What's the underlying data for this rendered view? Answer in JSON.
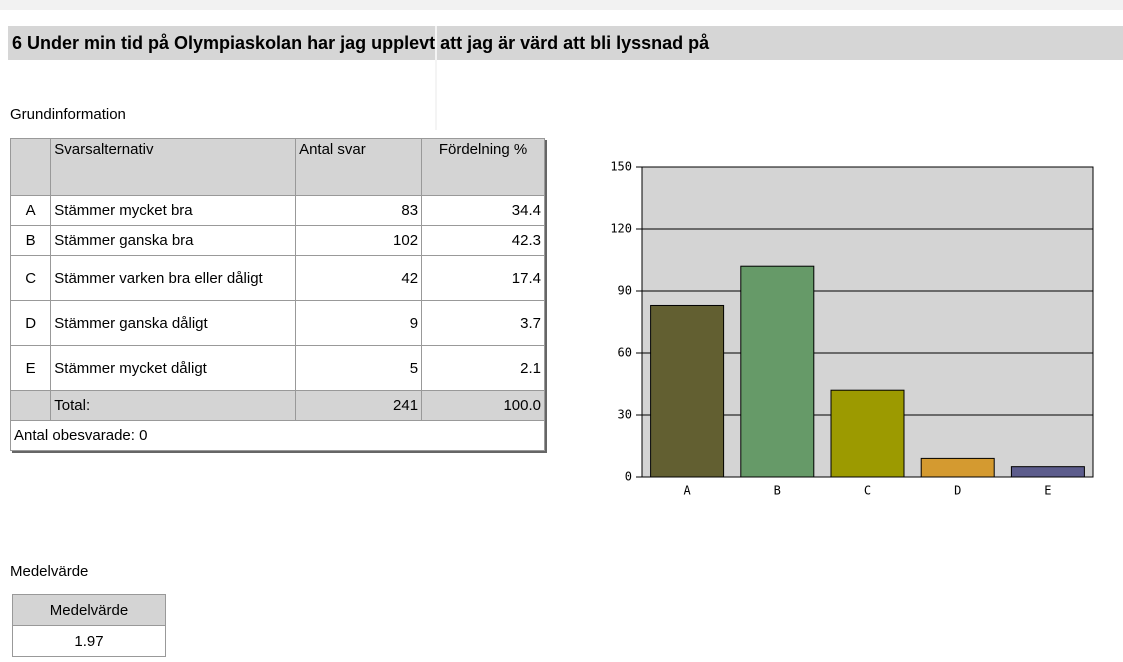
{
  "title": "6 Under min tid på Olympiaskolan har jag upplevt att jag är värd att bli lyssnad på",
  "section": "Grundinformation",
  "table": {
    "headers": [
      "Svarsalternativ",
      "Antal svar",
      "Fördelning %"
    ],
    "rows": [
      [
        "A",
        "Stämmer mycket bra",
        83,
        34.4
      ],
      [
        "B",
        "Stämmer ganska bra",
        102,
        42.3
      ],
      [
        "C",
        "Stämmer varken bra eller dåligt",
        42,
        17.4
      ],
      [
        "D",
        "Stämmer ganska dåligt",
        9,
        3.7
      ],
      [
        "E",
        "Stämmer mycket dåligt",
        5,
        2.1
      ]
    ],
    "total": [
      "Total:",
      241,
      "100.0"
    ],
    "unanswered": "Antal obesvarade: 0"
  },
  "chart_data": {
    "type": "bar",
    "categories": [
      "A",
      "B",
      "C",
      "D",
      "E"
    ],
    "values": [
      83,
      102,
      42,
      9,
      5
    ],
    "colors": [
      "#625f31",
      "#669a68",
      "#9c9a00",
      "#d49a30",
      "#5c5c8c"
    ],
    "ylim": [
      0,
      150
    ],
    "yticks": [
      0,
      30,
      60,
      90,
      120,
      150
    ],
    "grid": true
  },
  "mean": {
    "section": "Medelvärde",
    "header": "Medelvärde",
    "value": 1.97
  }
}
